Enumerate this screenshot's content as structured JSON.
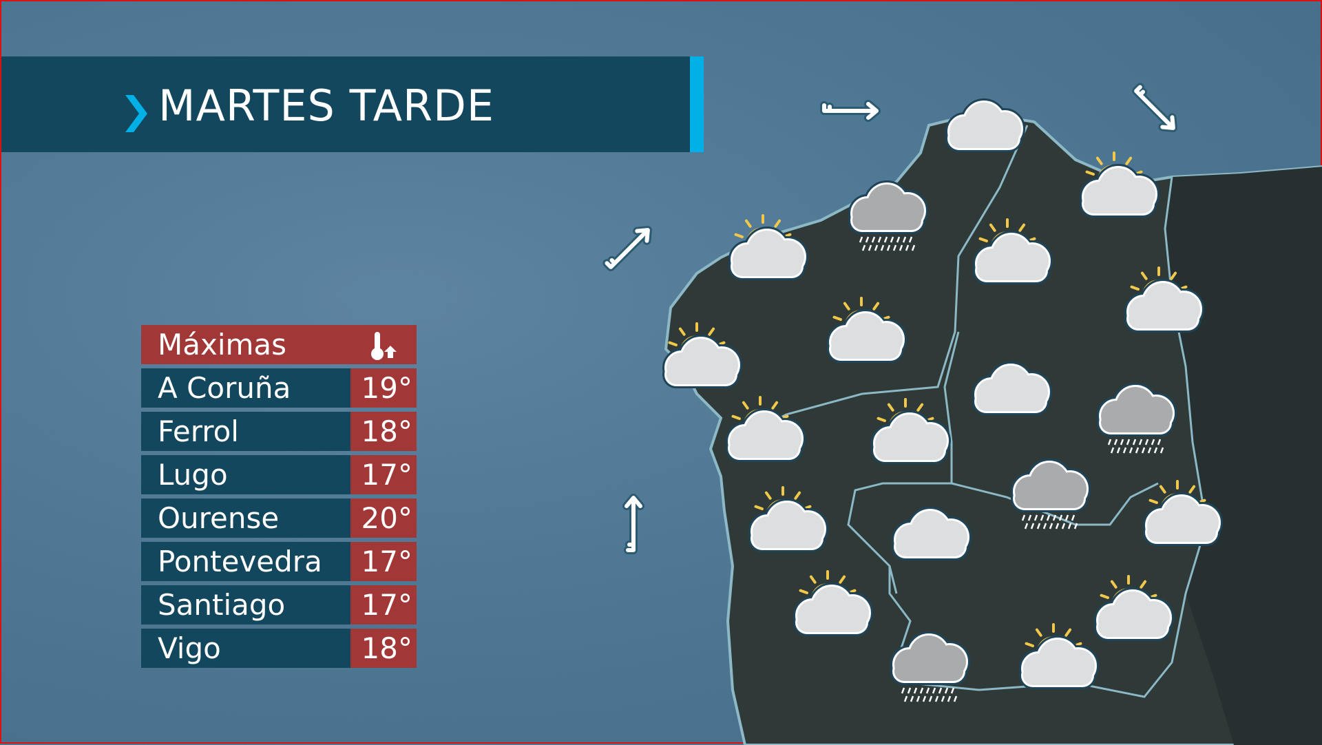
{
  "header": {
    "title": "MARTES TARDE"
  },
  "colors": {
    "panel": "#13475e",
    "accent": "#00b0e6",
    "temp": "#a23737",
    "sun": "#f2c84b"
  },
  "table": {
    "header_label": "Máximas",
    "header_icon": "thermometer-up-icon",
    "rows": [
      {
        "city": "A Coruña",
        "temp": "19°"
      },
      {
        "city": "Ferrol",
        "temp": "18°"
      },
      {
        "city": "Lugo",
        "temp": "17°"
      },
      {
        "city": "Ourense",
        "temp": "20°"
      },
      {
        "city": "Pontevedra",
        "temp": "17°"
      },
      {
        "city": "Santiago",
        "temp": "17°"
      },
      {
        "city": "Vigo",
        "temp": "18°"
      }
    ]
  },
  "map": {
    "weather_icons": [
      "cloudy",
      "rain",
      "partly-cloudy",
      "partly-cloudy",
      "partly-cloudy",
      "partly-cloudy",
      "partly-cloudy",
      "partly-cloudy",
      "cloudy",
      "rain",
      "partly-cloudy",
      "partly-cloudy",
      "rain",
      "partly-cloudy",
      "cloudy",
      "partly-cloudy",
      "partly-cloudy",
      "partly-cloudy",
      "rain",
      "partly-cloudy"
    ],
    "wind": [
      "east",
      "southeast",
      "northeast",
      "north"
    ]
  }
}
